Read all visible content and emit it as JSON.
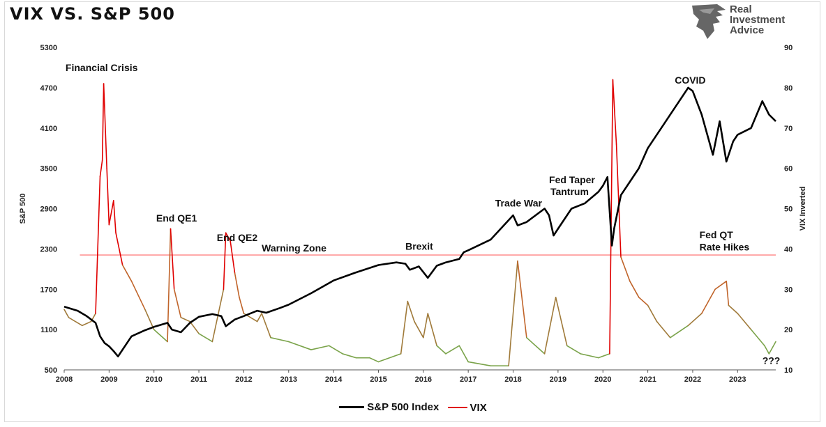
{
  "chart_data": {
    "type": "line",
    "title": "VIX VS. S&P 500",
    "logo": {
      "lines": [
        "Real",
        "Investment",
        "Advice"
      ]
    },
    "left_axis": {
      "label": "S&P 500",
      "min": 500,
      "max": 5300,
      "ticks": [
        "5300",
        "4700",
        "4100",
        "3500",
        "2900",
        "2300",
        "1700",
        "1100",
        "500"
      ]
    },
    "right_axis": {
      "label": "VIX Inverted",
      "min": 10,
      "max": 90,
      "ticks": [
        "90",
        "80",
        "70",
        "60",
        "50",
        "40",
        "30",
        "20",
        "10"
      ]
    },
    "x_axis": {
      "min": 2008,
      "max": 2023.85,
      "ticks": [
        "2008",
        "2009",
        "2010",
        "2011",
        "2012",
        "2013",
        "2014",
        "2015",
        "2016",
        "2017",
        "2018",
        "2019",
        "2020",
        "2021",
        "2022",
        "2023"
      ]
    },
    "reference_line": {
      "label": "Warning Zone",
      "vix_value": 38.5,
      "color": "#ff6666"
    },
    "annotations": [
      {
        "text": "Financial Crisis",
        "x": 2008.03,
        "y": 4950
      },
      {
        "text": "End QE1",
        "x": 2010.05,
        "y": 2710
      },
      {
        "text": "End QE2",
        "x": 2011.4,
        "y": 2420
      },
      {
        "text": "Warning Zone",
        "x": 2012.4,
        "y": 2260
      },
      {
        "text": "Brexit",
        "x": 2015.6,
        "y": 2290
      },
      {
        "text": "Trade War",
        "x": 2017.6,
        "y": 2930
      },
      {
        "text": "Fed Taper",
        "x": 2018.8,
        "y": 3280
      },
      {
        "text": "Tantrum",
        "x": 2018.83,
        "y": 3100
      },
      {
        "text": "COVID",
        "x": 2021.6,
        "y": 4760
      },
      {
        "text": "Fed QT",
        "x": 2022.15,
        "y": 2460
      },
      {
        "text": "Rate Hikes",
        "x": 2022.15,
        "y": 2280
      },
      {
        "text": "???",
        "x": 2023.55,
        "y": 590
      }
    ],
    "series": [
      {
        "name": "S&P 500 Index",
        "axis": "left",
        "color": "#000000",
        "x": [
          2008.0,
          2008.3,
          2008.5,
          2008.7,
          2008.8,
          2008.9,
          2009.0,
          2009.1,
          2009.2,
          2009.5,
          2009.8,
          2010.0,
          2010.3,
          2010.4,
          2010.6,
          2010.8,
          2011.0,
          2011.3,
          2011.5,
          2011.6,
          2011.8,
          2012.0,
          2012.3,
          2012.5,
          2012.8,
          2013.0,
          2013.5,
          2014.0,
          2014.5,
          2015.0,
          2015.4,
          2015.6,
          2015.7,
          2015.9,
          2016.1,
          2016.3,
          2016.5,
          2016.8,
          2016.9,
          2017.0,
          2017.5,
          2018.0,
          2018.1,
          2018.3,
          2018.7,
          2018.8,
          2018.9,
          2019.0,
          2019.3,
          2019.6,
          2019.9,
          2020.0,
          2020.1,
          2020.2,
          2020.25,
          2020.4,
          2020.6,
          2020.8,
          2021.0,
          2021.3,
          2021.6,
          2021.9,
          2022.0,
          2022.2,
          2022.45,
          2022.6,
          2022.75,
          2022.9,
          2023.0,
          2023.3,
          2023.55,
          2023.7,
          2023.85
        ],
        "y": [
          1440,
          1380,
          1300,
          1200,
          1000,
          900,
          850,
          780,
          700,
          1000,
          1090,
          1140,
          1200,
          1100,
          1060,
          1200,
          1290,
          1330,
          1300,
          1150,
          1250,
          1300,
          1380,
          1350,
          1420,
          1470,
          1640,
          1830,
          1950,
          2060,
          2100,
          2080,
          1990,
          2040,
          1870,
          2050,
          2100,
          2150,
          2250,
          2280,
          2440,
          2800,
          2650,
          2700,
          2900,
          2800,
          2500,
          2600,
          2900,
          2980,
          3150,
          3240,
          3370,
          2350,
          2600,
          3100,
          3300,
          3500,
          3800,
          4100,
          4400,
          4700,
          4650,
          4300,
          3700,
          4200,
          3600,
          3900,
          4000,
          4100,
          4500,
          4300,
          4200
        ]
      },
      {
        "name": "VIX",
        "axis": "right",
        "color": "#e00000",
        "x": [
          2008.0,
          2008.1,
          2008.4,
          2008.6,
          2008.7,
          2008.8,
          2008.85,
          2008.88,
          2008.95,
          2009.0,
          2009.1,
          2009.15,
          2009.3,
          2009.5,
          2009.8,
          2010.0,
          2010.3,
          2010.37,
          2010.45,
          2010.6,
          2010.8,
          2011.0,
          2011.3,
          2011.55,
          2011.6,
          2011.7,
          2011.8,
          2011.9,
          2012.0,
          2012.3,
          2012.4,
          2012.6,
          2013.0,
          2013.5,
          2013.9,
          2014.2,
          2014.5,
          2014.8,
          2015.0,
          2015.5,
          2015.65,
          2015.8,
          2016.0,
          2016.1,
          2016.3,
          2016.5,
          2016.8,
          2017.0,
          2017.5,
          2017.9,
          2018.1,
          2018.3,
          2018.7,
          2018.95,
          2019.2,
          2019.5,
          2019.9,
          2020.15,
          2020.22,
          2020.3,
          2020.4,
          2020.6,
          2020.8,
          2021.0,
          2021.2,
          2021.5,
          2021.9,
          2022.2,
          2022.5,
          2022.75,
          2022.8,
          2023.0,
          2023.3,
          2023.6,
          2023.7,
          2023.85
        ],
        "y": [
          25,
          23,
          21,
          22,
          24,
          58,
          62,
          81,
          60,
          46,
          52,
          44,
          36,
          32,
          25,
          20,
          17,
          45,
          30,
          23,
          22,
          19,
          17,
          30,
          44,
          42,
          34,
          28,
          24,
          22,
          24,
          18,
          17,
          15,
          16,
          14,
          13,
          13,
          12,
          14,
          27,
          22,
          18,
          24,
          16,
          14,
          16,
          12,
          11,
          11,
          37,
          18,
          14,
          28,
          16,
          14,
          13,
          14,
          82,
          66,
          38,
          32,
          28,
          26,
          22,
          18,
          21,
          24,
          30,
          32,
          26,
          24,
          20,
          16,
          14,
          17
        ]
      }
    ]
  }
}
